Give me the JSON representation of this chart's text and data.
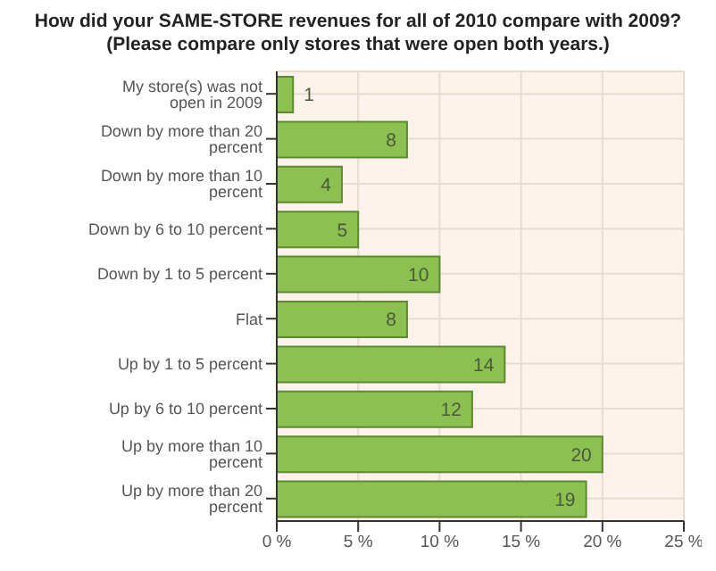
{
  "chart_data": {
    "type": "bar",
    "orientation": "horizontal",
    "title": "How did your SAME-STORE revenues for all of 2010 compare with 2009?",
    "subtitle": "(Please compare only stores that were open both years.)",
    "categories": [
      "My store(s) was not open in 2009",
      "Down by more than 20 percent",
      "Down by more than 10 percent",
      "Down by 6 to 10 percent",
      "Down by 1 to 5 percent",
      "Flat",
      "Up by 1 to 5 percent",
      "Up by 6 to 10 percent",
      "Up by more than 10 percent",
      "Up by more than 20 percent"
    ],
    "values": [
      1,
      8,
      4,
      5,
      10,
      8,
      14,
      12,
      20,
      19
    ],
    "color": "#8cc152",
    "data_labels": true,
    "grid": true,
    "legend": false,
    "xlim": [
      0,
      25
    ],
    "xticks": [
      {
        "value": 0,
        "label": "0 %"
      },
      {
        "value": 5,
        "label": "5 %"
      },
      {
        "value": 10,
        "label": "10 %"
      },
      {
        "value": 15,
        "label": "15 %"
      },
      {
        "value": 20,
        "label": "20 %"
      },
      {
        "value": 25,
        "label": "25 %"
      }
    ]
  }
}
